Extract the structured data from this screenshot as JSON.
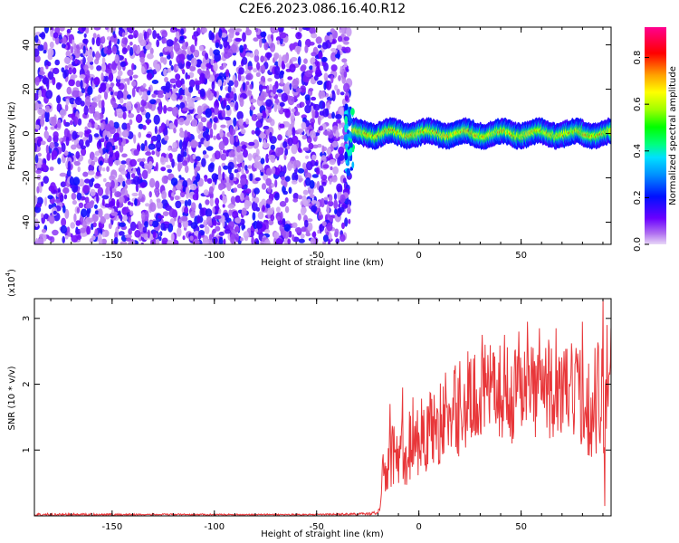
{
  "title": "C2E6.2023.086.16.40.R12",
  "chart_data": [
    {
      "type": "heatmap",
      "title": "C2E6.2023.086.16.40.R12",
      "xlabel": "Height of straight line (km)",
      "ylabel": "Frequency (Hz)",
      "xlim": [
        -188,
        94
      ],
      "ylim": [
        -50,
        48
      ],
      "xticks": [
        -150,
        -100,
        -50,
        0,
        50
      ],
      "yticks": [
        -40,
        -20,
        0,
        20,
        40
      ],
      "xtick_labels": [
        "-150",
        "-100",
        "-50",
        "0",
        "50"
      ],
      "ytick_labels": [
        "-40",
        "-20",
        "0",
        "20",
        "40"
      ],
      "colorbar": {
        "label": "Normalized spectral amplitude",
        "range": [
          0,
          0.93
        ],
        "ticks": [
          "0.0",
          "0.2",
          "0.4",
          "0.6",
          "0.8"
        ],
        "tick_values": [
          0,
          0.2,
          0.4,
          0.6,
          0.8
        ],
        "colormap": "rainbow (violet → red → magenta)"
      },
      "regions": {
        "noise_region_x": [
          -188,
          -34
        ],
        "noise_amplitude": [
          0.02,
          0.2
        ],
        "signal_onset_x": -32,
        "signal_frequency_hz": 0,
        "signal_band_halfwidth_hz": 3,
        "signal_amplitude": [
          0.4,
          0.85
        ]
      }
    },
    {
      "type": "line",
      "xlabel": "Height of straight line (km)",
      "ylabel": "SNR (10 * v/v)",
      "y_multiplier_label": "(x10",
      "y_multiplier_exp": "4",
      "y_multiplier_close": ")",
      "xlim": [
        -188,
        94
      ],
      "ylim": [
        0,
        3.3
      ],
      "xticks": [
        -150,
        -100,
        -50,
        0,
        50
      ],
      "yticks": [
        1,
        2,
        3
      ],
      "xtick_labels": [
        "-150",
        "-100",
        "-50",
        "0",
        "50"
      ],
      "ytick_labels": [
        "1",
        "2",
        "3"
      ],
      "color": "#e8373a",
      "series": [
        {
          "x": [
            -188,
            -100,
            -50,
            -25,
            -20,
            -19,
            -18,
            -17,
            -16,
            -15,
            -13,
            -10,
            -5,
            0,
            5,
            10,
            15,
            20,
            25,
            30,
            35,
            40,
            45,
            50,
            55,
            60,
            65,
            70,
            75,
            80,
            85,
            88,
            90,
            92,
            94
          ],
          "y": [
            0.02,
            0.02,
            0.02,
            0.03,
            0.05,
            0.15,
            0.4,
            0.9,
            0.6,
            0.8,
            0.9,
            1.0,
            1.0,
            1.2,
            1.3,
            1.4,
            1.6,
            1.6,
            1.7,
            1.9,
            1.9,
            1.9,
            1.8,
            2.0,
            1.9,
            2.0,
            1.9,
            1.8,
            1.9,
            1.8,
            1.6,
            1.9,
            1.7,
            1.8,
            1.6
          ],
          "noise_amplitude": [
            0.02,
            0.01,
            0.01,
            0.02,
            0.03,
            0.1,
            0.3,
            0.4,
            0.45,
            0.5,
            0.5,
            0.55,
            0.6,
            0.6,
            0.6,
            0.65,
            0.7,
            0.7,
            0.7,
            0.7,
            0.7,
            0.7,
            0.75,
            0.7,
            0.75,
            0.75,
            0.75,
            0.7,
            0.75,
            0.75,
            0.8,
            0.9,
            0.9,
            0.9,
            0.9
          ],
          "peaks": [
            [
              -14,
              1.7
            ],
            [
              -8,
              1.95
            ],
            [
              -3,
              1.8
            ],
            [
              20,
              2.35
            ],
            [
              24,
              2.5
            ],
            [
              31,
              2.75
            ],
            [
              42,
              2.75
            ],
            [
              49,
              2.8
            ],
            [
              53,
              2.95
            ],
            [
              56,
              2.55
            ],
            [
              59,
              2.85
            ],
            [
              62,
              2.55
            ],
            [
              67,
              2.85
            ],
            [
              71,
              2.5
            ],
            [
              80,
              2.95
            ],
            [
              86,
              2.55
            ],
            [
              90,
              3.3
            ],
            [
              91,
              0.15
            ],
            [
              92,
              2.9
            ],
            [
              94,
              2.85
            ]
          ]
        }
      ]
    }
  ]
}
